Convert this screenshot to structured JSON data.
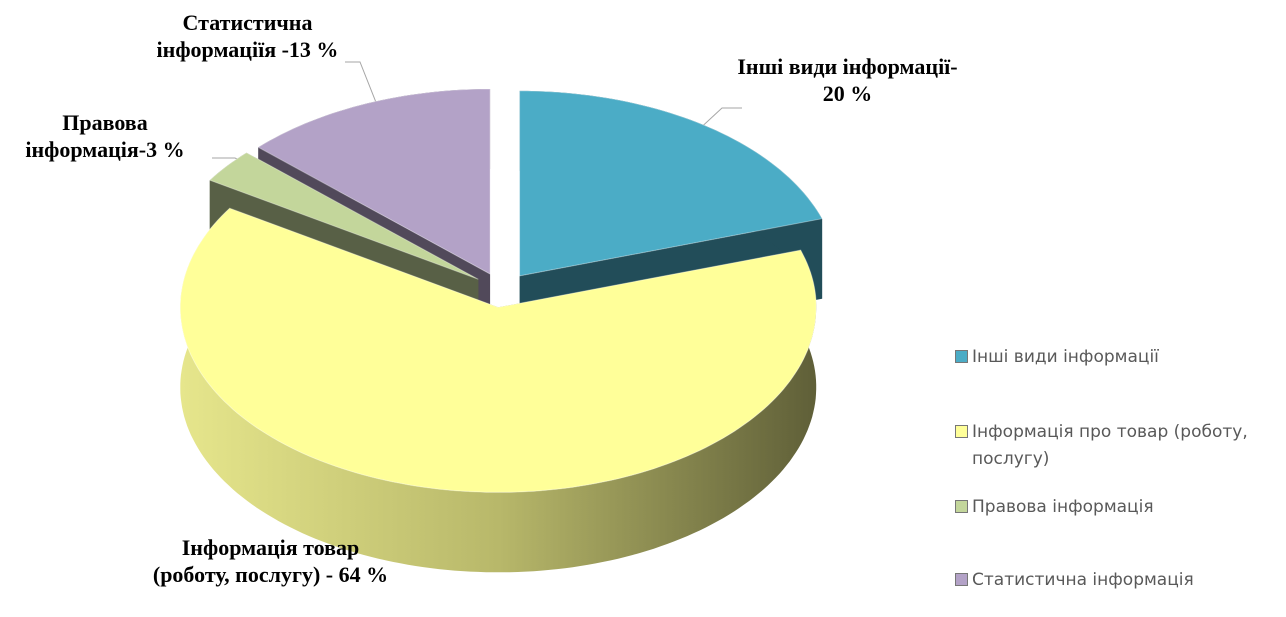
{
  "chart_data": {
    "type": "pie",
    "categories": [
      "Інші види інформації",
      "Інформація про товар (роботу, послугу)",
      "Правова інформація",
      "Статистична інформація"
    ],
    "values": [
      20,
      64,
      3,
      13
    ],
    "value_labels": [
      "Інші види інформації- 20 %",
      "Інформація товар (роботу, послугу) - 64 %",
      "Правова інформація-3 %",
      "Статистична інформаціїя -13 %"
    ],
    "colors": [
      "#4bacc6",
      "#ffff99",
      "#c3d69b",
      "#b3a2c7"
    ],
    "legend": "right"
  }
}
